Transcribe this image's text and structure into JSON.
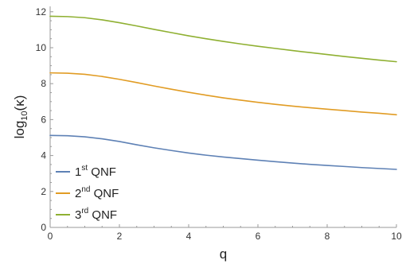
{
  "chart_data": {
    "type": "line",
    "title": "",
    "xlabel": "q",
    "ylabel_base": "log",
    "ylabel_sub": "10",
    "ylabel_arg": "(κ)",
    "xlim": [
      0,
      10
    ],
    "ylim": [
      0,
      12.3
    ],
    "x_ticks": [
      0,
      2,
      4,
      6,
      8,
      10
    ],
    "y_ticks": [
      0,
      2,
      4,
      6,
      8,
      10,
      12
    ],
    "grid": false,
    "legend_position": "bottom-left",
    "x": [
      0,
      0.5,
      1,
      1.5,
      2,
      2.5,
      3,
      3.5,
      4,
      4.5,
      5,
      5.5,
      6,
      6.5,
      7,
      7.5,
      8,
      8.5,
      9,
      9.5,
      10
    ],
    "series": [
      {
        "name_num": "1",
        "name_sup": "st",
        "name_rest": " QNF",
        "color": "#5e81b5",
        "values": [
          5.12,
          5.1,
          5.04,
          4.93,
          4.78,
          4.6,
          4.43,
          4.28,
          4.14,
          4.02,
          3.92,
          3.83,
          3.74,
          3.66,
          3.58,
          3.51,
          3.45,
          3.39,
          3.33,
          3.28,
          3.23
        ]
      },
      {
        "name_num": "2",
        "name_sup": "nd",
        "name_rest": " QNF",
        "color": "#e19c24",
        "values": [
          8.6,
          8.58,
          8.52,
          8.4,
          8.24,
          8.06,
          7.87,
          7.69,
          7.52,
          7.36,
          7.21,
          7.08,
          6.96,
          6.85,
          6.75,
          6.66,
          6.58,
          6.5,
          6.42,
          6.35,
          6.27
        ]
      },
      {
        "name_num": "3",
        "name_sup": "rd",
        "name_rest": " QNF",
        "color": "#8fb032",
        "values": [
          11.75,
          11.73,
          11.67,
          11.55,
          11.39,
          11.21,
          11.02,
          10.84,
          10.66,
          10.5,
          10.35,
          10.21,
          10.08,
          9.96,
          9.84,
          9.73,
          9.62,
          9.51,
          9.41,
          9.31,
          9.22
        ]
      }
    ]
  }
}
